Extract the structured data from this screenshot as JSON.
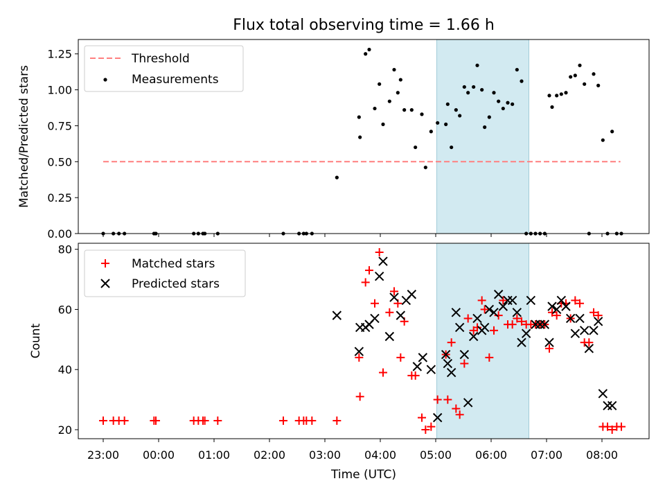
{
  "title": "Flux total observing time = 1.66 h",
  "xlabel": "Time (UTC)",
  "x_tick_labels": [
    "23:00",
    "00:00",
    "01:00",
    "02:00",
    "03:00",
    "04:00",
    "05:00",
    "06:00",
    "07:00",
    "08:00"
  ],
  "colors": {
    "threshold": "#ff7f7f",
    "measurements": "#000000",
    "matched": "#ff0000",
    "predicted": "#000000",
    "observing_span": "#add8e6"
  },
  "chart_data": [
    {
      "type": "scatter",
      "ylabel": "Matched/Predicted stars",
      "ylim": [
        0,
        1.35
      ],
      "y_tick_labels": [
        "0.00",
        "0.25",
        "0.50",
        "0.75",
        "1.00",
        "1.25"
      ],
      "y_ticks": [
        0,
        0.25,
        0.5,
        0.75,
        1.0,
        1.25
      ],
      "x_unit": "hours after 23:00 UTC",
      "xlim": [
        -0.45,
        9.85
      ],
      "observing_span": [
        "05:01",
        "06:41"
      ],
      "legend": {
        "position": "top-left",
        "entries": [
          "Threshold",
          "Measurements"
        ]
      },
      "series": [
        {
          "name": "Threshold",
          "kind": "line",
          "style": "dashed",
          "x": [
            "23:00",
            "08:20"
          ],
          "values": [
            0.5,
            0.5
          ]
        },
        {
          "name": "Measurements",
          "kind": "scatter",
          "x": [
            "23:00",
            "23:11",
            "23:17",
            "23:23",
            "23:55",
            "23:57",
            "00:38",
            "00:43",
            "00:48",
            "00:50",
            "01:04",
            "02:15",
            "02:32",
            "02:37",
            "02:40",
            "02:46",
            "03:13",
            "03:37",
            "03:38",
            "03:44",
            "03:48",
            "03:54",
            "03:59",
            "04:03",
            "04:10",
            "04:15",
            "04:19",
            "04:22",
            "04:26",
            "04:34",
            "04:38",
            "04:45",
            "04:49",
            "04:55",
            "05:02",
            "05:11",
            "05:13",
            "05:17",
            "05:22",
            "05:26",
            "05:31",
            "05:35",
            "05:41",
            "05:45",
            "05:50",
            "05:53",
            "05:58",
            "06:03",
            "06:08",
            "06:13",
            "06:18",
            "06:23",
            "06:28",
            "06:33",
            "06:38",
            "06:43",
            "06:48",
            "06:53",
            "06:58",
            "07:03",
            "07:06",
            "07:11",
            "07:16",
            "07:21",
            "07:26",
            "07:31",
            "07:36",
            "07:41",
            "07:46",
            "07:51",
            "07:56",
            "08:01",
            "08:06",
            "08:11",
            "08:16",
            "08:21"
          ],
          "values": [
            0,
            0,
            0,
            0,
            0,
            0,
            0,
            0,
            0,
            0,
            0,
            0,
            0,
            0,
            0,
            0,
            0.39,
            0.81,
            0.67,
            1.25,
            1.28,
            0.87,
            1.04,
            0.76,
            0.92,
            1.14,
            0.98,
            1.07,
            0.86,
            0.86,
            0.6,
            0.83,
            0.46,
            0.71,
            0.77,
            0.76,
            0.9,
            0.6,
            0.86,
            0.82,
            1.02,
            0.98,
            1.02,
            1.17,
            1.0,
            0.74,
            0.81,
            0.98,
            0.92,
            0.87,
            0.91,
            0.9,
            1.14,
            1.06,
            0,
            0,
            0,
            0,
            0,
            0.96,
            0.88,
            0.96,
            0.97,
            0.98,
            1.09,
            1.1,
            1.17,
            1.04,
            0,
            1.11,
            1.03,
            0.65,
            0,
            0.71,
            0,
            0
          ]
        }
      ]
    },
    {
      "type": "scatter",
      "ylabel": "Count",
      "ylim": [
        17,
        82
      ],
      "y_tick_labels": [
        "20",
        "40",
        "60",
        "80"
      ],
      "y_ticks": [
        20,
        40,
        60,
        80
      ],
      "x_unit": "hours after 23:00 UTC",
      "xlim": [
        -0.45,
        9.85
      ],
      "observing_span": [
        "05:01",
        "06:41"
      ],
      "legend": {
        "position": "top-left",
        "entries": [
          "Matched stars",
          "Predicted stars"
        ]
      },
      "series": [
        {
          "name": "Matched stars",
          "marker": "plus",
          "x": [
            "23:00",
            "23:11",
            "23:17",
            "23:23",
            "23:55",
            "23:57",
            "00:38",
            "00:43",
            "00:48",
            "00:50",
            "01:04",
            "02:15",
            "02:32",
            "02:37",
            "02:40",
            "02:46",
            "03:13",
            "03:37",
            "03:38",
            "03:44",
            "03:48",
            "03:54",
            "03:59",
            "04:03",
            "04:10",
            "04:15",
            "04:19",
            "04:22",
            "04:26",
            "04:34",
            "04:38",
            "04:45",
            "04:49",
            "04:55",
            "05:02",
            "05:11",
            "05:13",
            "05:17",
            "05:22",
            "05:26",
            "05:31",
            "05:35",
            "05:41",
            "05:45",
            "05:50",
            "05:53",
            "05:58",
            "06:03",
            "06:08",
            "06:13",
            "06:18",
            "06:23",
            "06:28",
            "06:33",
            "06:38",
            "06:43",
            "06:48",
            "06:53",
            "06:58",
            "07:03",
            "07:06",
            "07:11",
            "07:16",
            "07:21",
            "07:26",
            "07:31",
            "07:36",
            "07:41",
            "07:46",
            "07:51",
            "07:56",
            "08:01",
            "08:06",
            "08:11",
            "08:16",
            "08:21"
          ],
          "values": [
            23,
            23,
            23,
            23,
            23,
            23,
            23,
            23,
            23,
            23,
            23,
            23,
            23,
            23,
            23,
            23,
            23,
            44,
            31,
            69,
            73,
            62,
            79,
            39,
            59,
            66,
            62,
            44,
            56,
            38,
            38,
            24,
            20,
            21,
            30,
            45,
            30,
            49,
            27,
            25,
            42,
            57,
            53,
            54,
            63,
            60,
            44,
            53,
            58,
            63,
            55,
            55,
            57,
            56,
            55,
            55,
            55,
            55,
            55,
            47,
            59,
            58,
            62,
            62,
            57,
            63,
            62,
            49,
            49,
            59,
            58,
            21,
            21,
            20,
            21,
            21
          ]
        },
        {
          "name": "Predicted stars",
          "marker": "x",
          "x": [
            "03:13",
            "03:37",
            "03:38",
            "03:44",
            "03:48",
            "03:54",
            "03:59",
            "04:03",
            "04:10",
            "04:15",
            "04:22",
            "04:28",
            "04:34",
            "04:40",
            "04:46",
            "04:55",
            "05:02",
            "05:11",
            "05:13",
            "05:17",
            "05:22",
            "05:26",
            "05:31",
            "05:35",
            "05:41",
            "05:45",
            "05:50",
            "05:53",
            "05:58",
            "06:03",
            "06:08",
            "06:13",
            "06:18",
            "06:23",
            "06:28",
            "06:33",
            "06:38",
            "06:43",
            "06:48",
            "06:53",
            "06:58",
            "07:03",
            "07:06",
            "07:11",
            "07:16",
            "07:21",
            "07:26",
            "07:31",
            "07:36",
            "07:41",
            "07:46",
            "07:51",
            "07:56",
            "08:01",
            "08:06",
            "08:11"
          ],
          "values": [
            58,
            46,
            54,
            54,
            55,
            57,
            71,
            76,
            51,
            64,
            58,
            63,
            65,
            41,
            44,
            40,
            24,
            45,
            42,
            39,
            59,
            54,
            45,
            29,
            51,
            57,
            53,
            54,
            60,
            59,
            65,
            61,
            63,
            63,
            59,
            49,
            52,
            63,
            55,
            55,
            55,
            49,
            61,
            60,
            63,
            61,
            57,
            52,
            57,
            53,
            47,
            53,
            56,
            32,
            28,
            28
          ]
        }
      ]
    }
  ]
}
